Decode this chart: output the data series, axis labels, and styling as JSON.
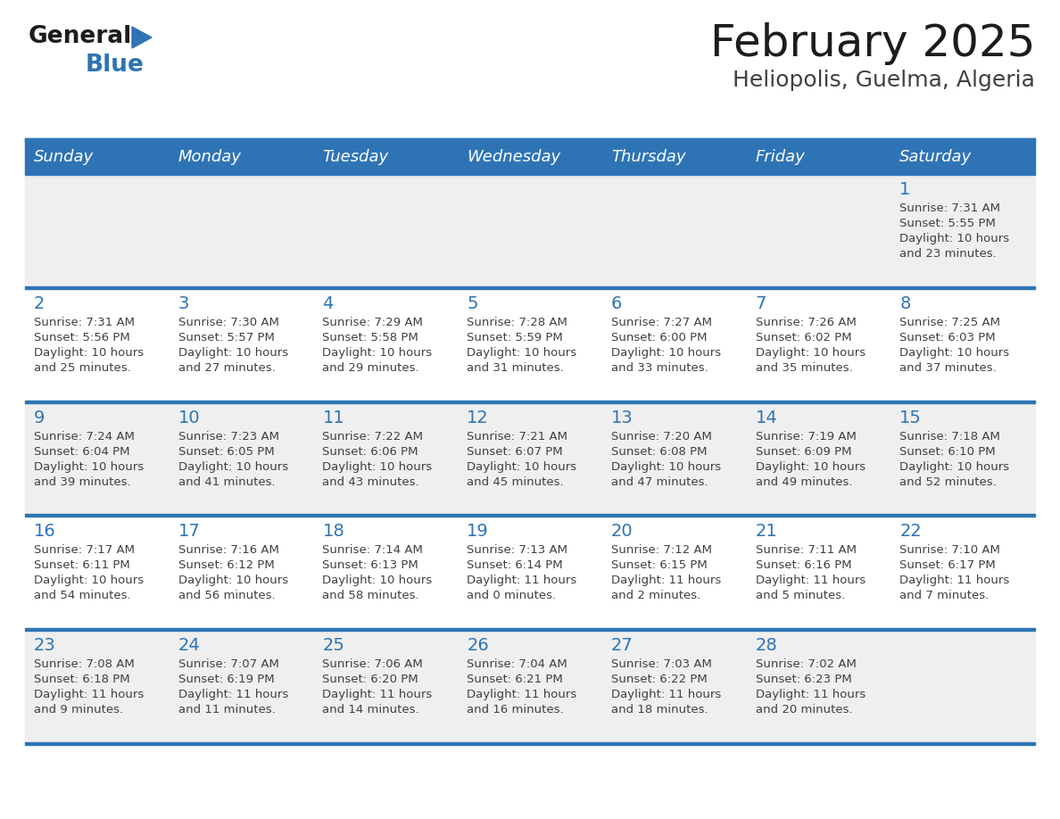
{
  "title": "February 2025",
  "subtitle": "Heliopolis, Guelma, Algeria",
  "header_bg_color": "#2E74B5",
  "header_text_color": "#FFFFFF",
  "cell_bg_white": "#FFFFFF",
  "cell_bg_gray": "#EFEFEF",
  "day_number_color": "#2E74B5",
  "text_color": "#404040",
  "border_color": "#2E74B5",
  "days_of_week": [
    "Sunday",
    "Monday",
    "Tuesday",
    "Wednesday",
    "Thursday",
    "Friday",
    "Saturday"
  ],
  "weeks": [
    [
      {
        "day": "",
        "info": ""
      },
      {
        "day": "",
        "info": ""
      },
      {
        "day": "",
        "info": ""
      },
      {
        "day": "",
        "info": ""
      },
      {
        "day": "",
        "info": ""
      },
      {
        "day": "",
        "info": ""
      },
      {
        "day": "1",
        "info": "Sunrise: 7:31 AM\nSunset: 5:55 PM\nDaylight: 10 hours\nand 23 minutes."
      }
    ],
    [
      {
        "day": "2",
        "info": "Sunrise: 7:31 AM\nSunset: 5:56 PM\nDaylight: 10 hours\nand 25 minutes."
      },
      {
        "day": "3",
        "info": "Sunrise: 7:30 AM\nSunset: 5:57 PM\nDaylight: 10 hours\nand 27 minutes."
      },
      {
        "day": "4",
        "info": "Sunrise: 7:29 AM\nSunset: 5:58 PM\nDaylight: 10 hours\nand 29 minutes."
      },
      {
        "day": "5",
        "info": "Sunrise: 7:28 AM\nSunset: 5:59 PM\nDaylight: 10 hours\nand 31 minutes."
      },
      {
        "day": "6",
        "info": "Sunrise: 7:27 AM\nSunset: 6:00 PM\nDaylight: 10 hours\nand 33 minutes."
      },
      {
        "day": "7",
        "info": "Sunrise: 7:26 AM\nSunset: 6:02 PM\nDaylight: 10 hours\nand 35 minutes."
      },
      {
        "day": "8",
        "info": "Sunrise: 7:25 AM\nSunset: 6:03 PM\nDaylight: 10 hours\nand 37 minutes."
      }
    ],
    [
      {
        "day": "9",
        "info": "Sunrise: 7:24 AM\nSunset: 6:04 PM\nDaylight: 10 hours\nand 39 minutes."
      },
      {
        "day": "10",
        "info": "Sunrise: 7:23 AM\nSunset: 6:05 PM\nDaylight: 10 hours\nand 41 minutes."
      },
      {
        "day": "11",
        "info": "Sunrise: 7:22 AM\nSunset: 6:06 PM\nDaylight: 10 hours\nand 43 minutes."
      },
      {
        "day": "12",
        "info": "Sunrise: 7:21 AM\nSunset: 6:07 PM\nDaylight: 10 hours\nand 45 minutes."
      },
      {
        "day": "13",
        "info": "Sunrise: 7:20 AM\nSunset: 6:08 PM\nDaylight: 10 hours\nand 47 minutes."
      },
      {
        "day": "14",
        "info": "Sunrise: 7:19 AM\nSunset: 6:09 PM\nDaylight: 10 hours\nand 49 minutes."
      },
      {
        "day": "15",
        "info": "Sunrise: 7:18 AM\nSunset: 6:10 PM\nDaylight: 10 hours\nand 52 minutes."
      }
    ],
    [
      {
        "day": "16",
        "info": "Sunrise: 7:17 AM\nSunset: 6:11 PM\nDaylight: 10 hours\nand 54 minutes."
      },
      {
        "day": "17",
        "info": "Sunrise: 7:16 AM\nSunset: 6:12 PM\nDaylight: 10 hours\nand 56 minutes."
      },
      {
        "day": "18",
        "info": "Sunrise: 7:14 AM\nSunset: 6:13 PM\nDaylight: 10 hours\nand 58 minutes."
      },
      {
        "day": "19",
        "info": "Sunrise: 7:13 AM\nSunset: 6:14 PM\nDaylight: 11 hours\nand 0 minutes."
      },
      {
        "day": "20",
        "info": "Sunrise: 7:12 AM\nSunset: 6:15 PM\nDaylight: 11 hours\nand 2 minutes."
      },
      {
        "day": "21",
        "info": "Sunrise: 7:11 AM\nSunset: 6:16 PM\nDaylight: 11 hours\nand 5 minutes."
      },
      {
        "day": "22",
        "info": "Sunrise: 7:10 AM\nSunset: 6:17 PM\nDaylight: 11 hours\nand 7 minutes."
      }
    ],
    [
      {
        "day": "23",
        "info": "Sunrise: 7:08 AM\nSunset: 6:18 PM\nDaylight: 11 hours\nand 9 minutes."
      },
      {
        "day": "24",
        "info": "Sunrise: 7:07 AM\nSunset: 6:19 PM\nDaylight: 11 hours\nand 11 minutes."
      },
      {
        "day": "25",
        "info": "Sunrise: 7:06 AM\nSunset: 6:20 PM\nDaylight: 11 hours\nand 14 minutes."
      },
      {
        "day": "26",
        "info": "Sunrise: 7:04 AM\nSunset: 6:21 PM\nDaylight: 11 hours\nand 16 minutes."
      },
      {
        "day": "27",
        "info": "Sunrise: 7:03 AM\nSunset: 6:22 PM\nDaylight: 11 hours\nand 18 minutes."
      },
      {
        "day": "28",
        "info": "Sunrise: 7:02 AM\nSunset: 6:23 PM\nDaylight: 11 hours\nand 20 minutes."
      },
      {
        "day": "",
        "info": ""
      }
    ]
  ]
}
